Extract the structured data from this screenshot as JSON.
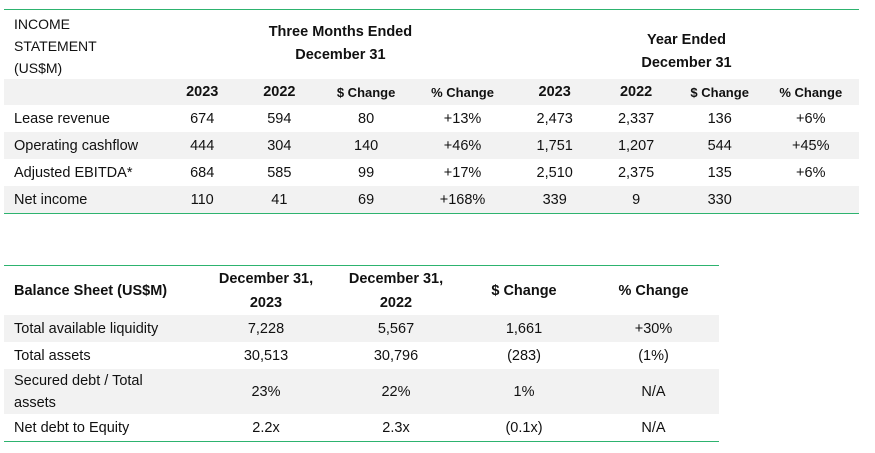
{
  "income": {
    "title": [
      "INCOME",
      "STATEMENT",
      "(US$M)"
    ],
    "period1": [
      "Three Months Ended",
      "December 31"
    ],
    "period2": [
      "Year Ended",
      "December 31"
    ],
    "columns": [
      "2023",
      "2022",
      "$ Change",
      "% Change",
      "2023",
      "2022",
      "$ Change",
      "% Change"
    ],
    "rows": [
      {
        "label": "Lease revenue",
        "values": [
          "674",
          "594",
          "80",
          "+13%",
          "2,473",
          "2,337",
          "136",
          "+6%"
        ]
      },
      {
        "label": "Operating cashflow",
        "values": [
          "444",
          "304",
          "140",
          "+46%",
          "1,751",
          "1,207",
          "544",
          "+45%"
        ]
      },
      {
        "label": "Adjusted EBITDA*",
        "values": [
          "684",
          "585",
          "99",
          "+17%",
          "2,510",
          "2,375",
          "135",
          "+6%"
        ]
      },
      {
        "label": "Net income",
        "values": [
          "110",
          "41",
          "69",
          "+168%",
          "339",
          "9",
          "330",
          ""
        ]
      }
    ]
  },
  "balance": {
    "title": "Balance Sheet (US$M)",
    "columns": [
      [
        "December 31,",
        "2023"
      ],
      [
        "December 31,",
        "2022"
      ],
      [
        "$ Change"
      ],
      [
        "% Change"
      ]
    ],
    "rows": [
      {
        "label": [
          "Total available liquidity"
        ],
        "values": [
          "7,228",
          "5,567",
          "1,661",
          "+30%"
        ]
      },
      {
        "label": [
          "Total assets"
        ],
        "values": [
          "30,513",
          "30,796",
          "(283)",
          "(1%)"
        ]
      },
      {
        "label": [
          "Secured debt / Total",
          "assets"
        ],
        "values": [
          "23%",
          "22%",
          "1%",
          "N/A"
        ]
      },
      {
        "label": [
          "Net debt to Equity"
        ],
        "values": [
          "2.2x",
          "2.3x",
          "(0.1x)",
          "N/A"
        ]
      }
    ]
  }
}
